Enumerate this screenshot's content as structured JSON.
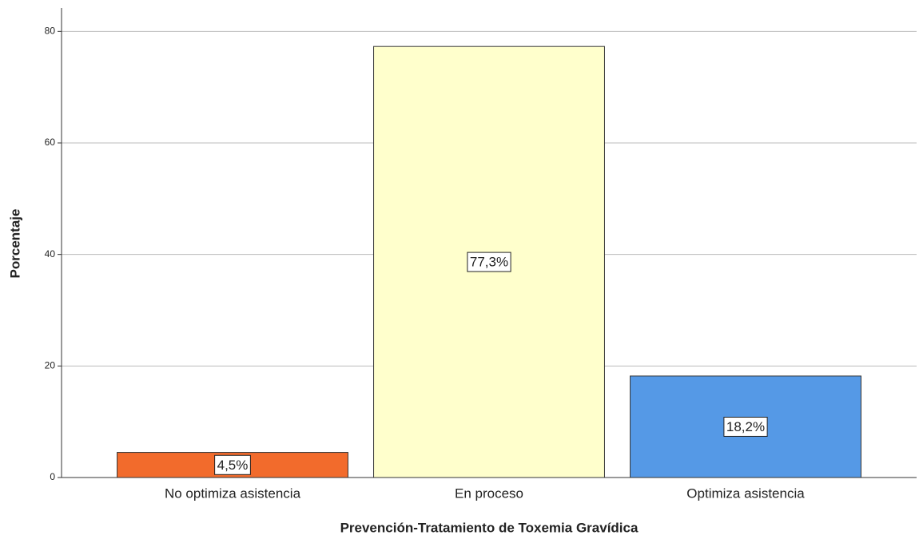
{
  "chart_data": {
    "type": "bar",
    "x_label": "Prevención-Tratamiento de Toxemia Gravídica",
    "y_label": "Porcentaje",
    "categories": [
      "No optimiza asistencia",
      "En proceso",
      "Optimiza asistencia"
    ],
    "values": [
      4.5,
      77.3,
      18.2
    ],
    "value_labels": [
      "4,5%",
      "77,3%",
      "18,2%"
    ],
    "colors": [
      "#f26b2c",
      "#ffffcc",
      "#5599e6"
    ],
    "ylim": [
      0,
      84.2
    ],
    "yticks": [
      0,
      20,
      40,
      60,
      80
    ],
    "grid": true
  }
}
